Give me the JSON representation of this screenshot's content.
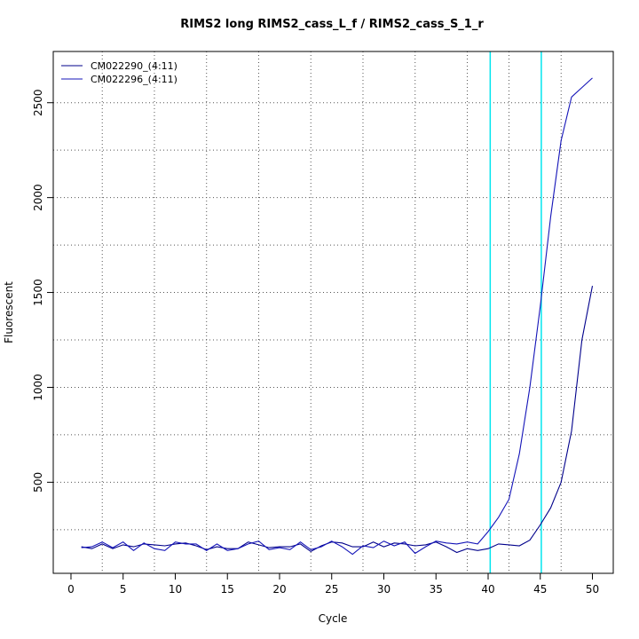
{
  "chart_data": {
    "type": "line",
    "title": "RIMS2 long RIMS2_cass_L_f / RIMS2_cass_S_1_r",
    "xlabel": "Cycle",
    "ylabel": "Fluorescent",
    "xlim": [
      -1.7,
      52
    ],
    "ylim": [
      20,
      2770
    ],
    "x_ticks": [
      0,
      5,
      10,
      15,
      20,
      25,
      30,
      35,
      40,
      45,
      50
    ],
    "y_ticks": [
      500,
      1000,
      1500,
      2000,
      2500
    ],
    "grid": true,
    "grid_style": "dotted",
    "x_grid": [
      3,
      8,
      13,
      18,
      23,
      28,
      33,
      38,
      42,
      47
    ],
    "y_grid": [
      250,
      500,
      750,
      1000,
      1250,
      1500,
      1750,
      2000,
      2250,
      2500
    ],
    "legend_position": "top-left",
    "threshold_lines": [
      {
        "x": 40.2,
        "color": "#00e5ee"
      },
      {
        "x": 45.1,
        "color": "#00e5ee"
      }
    ],
    "x": [
      1,
      2,
      3,
      4,
      5,
      6,
      7,
      8,
      9,
      10,
      11,
      12,
      13,
      14,
      15,
      16,
      17,
      18,
      19,
      20,
      21,
      22,
      23,
      24,
      25,
      26,
      27,
      28,
      29,
      30,
      31,
      32,
      33,
      34,
      35,
      36,
      37,
      38,
      39,
      40,
      41,
      42,
      43,
      44,
      45,
      46,
      47,
      48,
      49,
      50
    ],
    "series": [
      {
        "name": "CM022290_(4:11)",
        "color": "#00008b",
        "values": [
          160,
          150,
          175,
          150,
          170,
          160,
          175,
          170,
          165,
          175,
          180,
          165,
          145,
          160,
          150,
          150,
          185,
          170,
          155,
          160,
          160,
          175,
          135,
          165,
          185,
          180,
          160,
          160,
          185,
          160,
          180,
          175,
          165,
          170,
          185,
          160,
          130,
          150,
          140,
          150,
          175,
          170,
          165,
          195,
          275,
          365,
          500,
          770,
          1250,
          1535
        ]
      },
      {
        "name": "CM022296_(4:11)",
        "color": "#1414b8",
        "values": [
          155,
          160,
          185,
          155,
          185,
          140,
          180,
          150,
          140,
          185,
          175,
          175,
          140,
          175,
          140,
          150,
          175,
          190,
          145,
          155,
          145,
          185,
          145,
          160,
          190,
          160,
          120,
          165,
          155,
          190,
          165,
          185,
          125,
          160,
          190,
          180,
          175,
          185,
          175,
          240,
          315,
          410,
          650,
          1000,
          1425,
          1900,
          2300,
          2530,
          2580,
          2630
        ]
      }
    ]
  }
}
